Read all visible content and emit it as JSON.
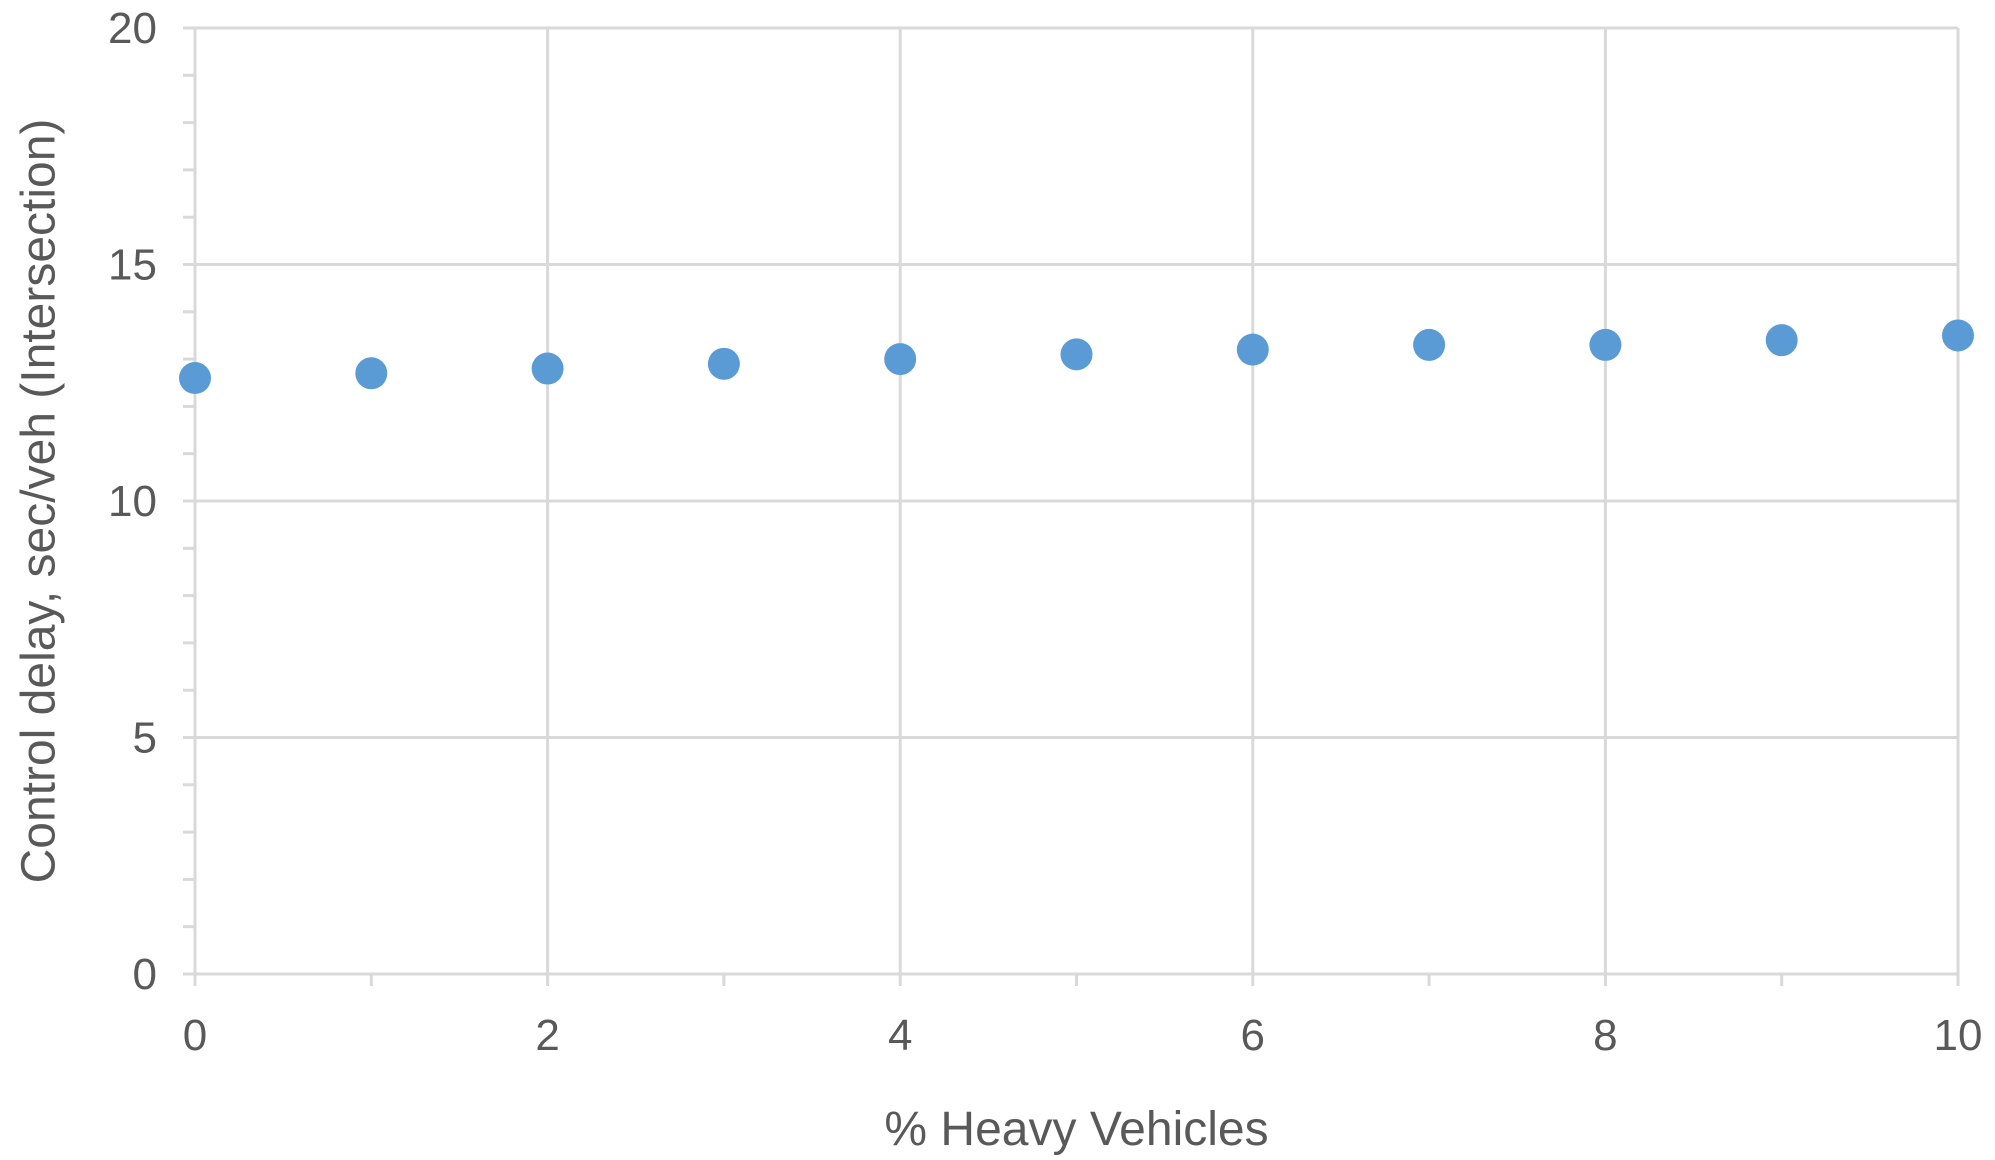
{
  "chart_data": {
    "type": "scatter",
    "title": "",
    "xlabel": "% Heavy Vehicles",
    "ylabel": "Control delay, sec/veh (Intersection)",
    "xlim": [
      0,
      10
    ],
    "ylim": [
      0,
      20
    ],
    "x_ticks": [
      "0",
      "2",
      "4",
      "6",
      "8",
      "10"
    ],
    "y_ticks": [
      "0",
      "5",
      "10",
      "15",
      "20"
    ],
    "x_minor_step": 1,
    "y_minor_step": 1,
    "grid": true,
    "legend": "none",
    "marker_color": "#5B9BD5",
    "grid_color": "#D9D9D9",
    "text_color": "#595959",
    "series": [
      {
        "x": [
          0,
          1,
          2,
          3,
          4,
          5,
          6,
          7,
          8,
          9,
          10
        ],
        "y": [
          12.6,
          12.7,
          12.8,
          12.9,
          13.0,
          13.1,
          13.2,
          13.3,
          13.3,
          13.4,
          13.5
        ]
      }
    ]
  }
}
